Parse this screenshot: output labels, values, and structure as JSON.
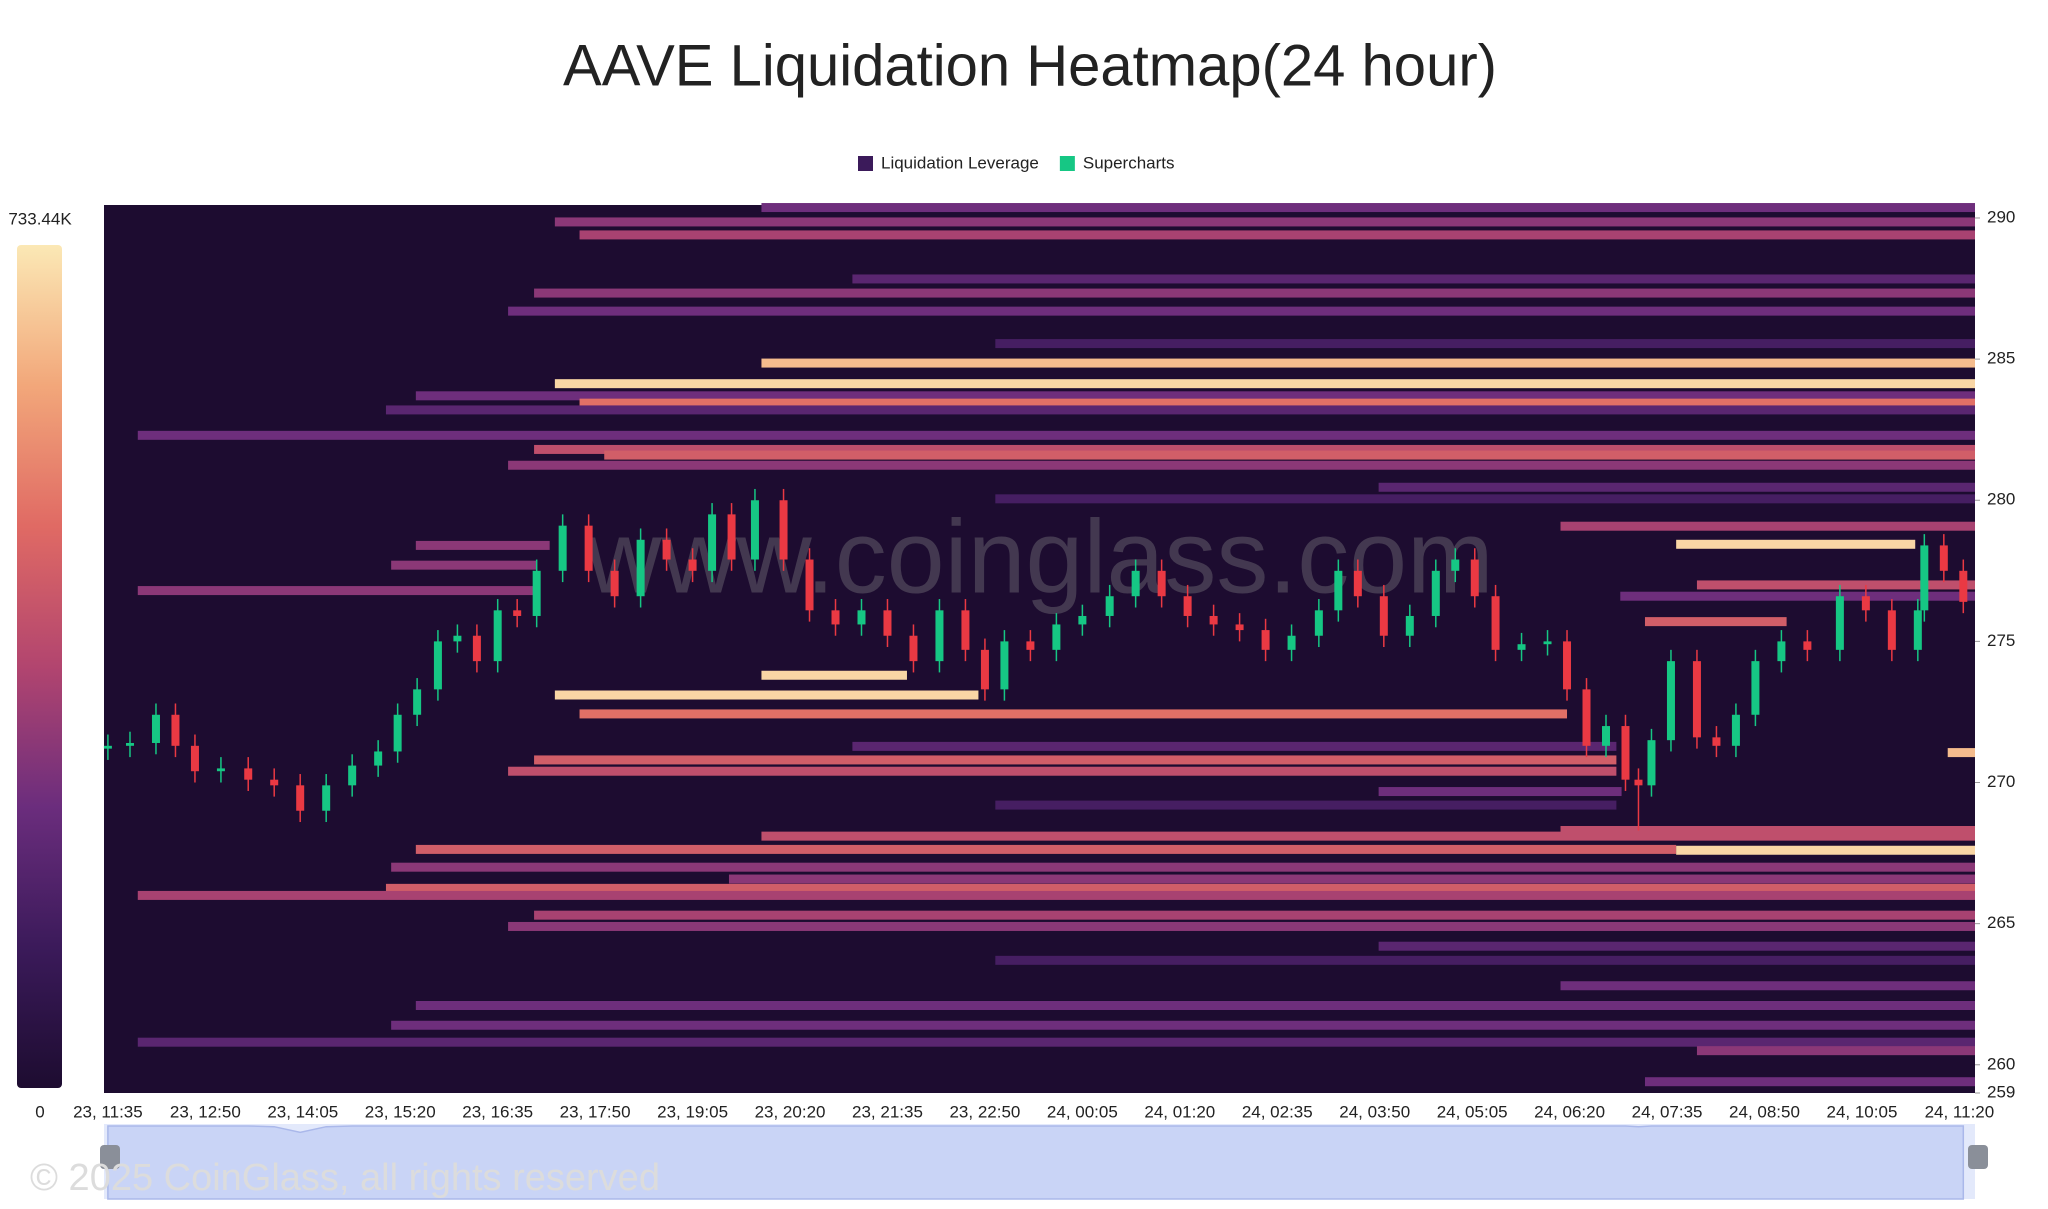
{
  "chart_data": {
    "type": "heatmap",
    "title": "AAVE Liquidation Heatmap(24 hour)",
    "watermark": "www.coinglass.com",
    "copyright": "© 2025 CoinGlass, all rights reserved",
    "series": [
      {
        "name": "Liquidation Leverage",
        "color": "#3b1a5a"
      },
      {
        "name": "Supercharts",
        "color": "#16c784"
      }
    ],
    "background": "#1d0c30",
    "colorscale": [
      "#1d0c30",
      "#3b1a5a",
      "#6b2d7d",
      "#b2456f",
      "#e06a64",
      "#f2a77a",
      "#fbe8b5"
    ],
    "colorbar": {
      "zlim": [
        0,
        733440
      ],
      "ticks": [
        {
          "value": 733440,
          "label": "733.44K"
        },
        0
      ]
    },
    "up_color": "#16c784",
    "down_color": "#ea3943",
    "xlim": [
      -3,
      1437
    ],
    "xticks": [
      {
        "value": 0,
        "label": "23, 11:35"
      },
      {
        "value": 75,
        "label": "23, 12:50"
      },
      {
        "value": 150,
        "label": "23, 14:05"
      },
      {
        "value": 225,
        "label": "23, 15:20"
      },
      {
        "value": 300,
        "label": "23, 16:35"
      },
      {
        "value": 375,
        "label": "23, 17:50"
      },
      {
        "value": 450,
        "label": "23, 19:05"
      },
      {
        "value": 525,
        "label": "23, 20:20"
      },
      {
        "value": 600,
        "label": "23, 21:35"
      },
      {
        "value": 675,
        "label": "23, 22:50"
      },
      {
        "value": 750,
        "label": "24, 00:05"
      },
      {
        "value": 825,
        "label": "24, 01:20"
      },
      {
        "value": 900,
        "label": "24, 02:35"
      },
      {
        "value": 975,
        "label": "24, 03:50"
      },
      {
        "value": 1050,
        "label": "24, 05:05"
      },
      {
        "value": 1125,
        "label": "24, 06:20"
      },
      {
        "value": 1200,
        "label": "24, 07:35"
      },
      {
        "value": 1275,
        "label": "24, 08:50"
      },
      {
        "value": 1350,
        "label": "24, 10:05"
      },
      {
        "value": 1425,
        "label": "24, 11:20"
      }
    ],
    "ylim": [
      259,
      290.46
    ],
    "yticks": [
      259,
      260,
      265,
      270,
      275,
      280,
      285,
      290
    ],
    "bands": [
      {
        "price": 290.37,
        "start": 503,
        "end": 1437,
        "value": 250000
      },
      {
        "price": 289.86,
        "start": 344,
        "end": 1437,
        "value": 300000
      },
      {
        "price": 289.4,
        "start": 363,
        "end": 1437,
        "value": 350000
      },
      {
        "price": 287.84,
        "start": 573,
        "end": 1437,
        "value": 200000
      },
      {
        "price": 287.34,
        "start": 328,
        "end": 1437,
        "value": 300000
      },
      {
        "price": 286.7,
        "start": 308,
        "end": 1437,
        "value": 250000
      },
      {
        "price": 285.55,
        "start": 683,
        "end": 1437,
        "value": 150000
      },
      {
        "price": 284.86,
        "start": 503,
        "end": 1437,
        "value": 650000
      },
      {
        "price": 284.13,
        "start": 344,
        "end": 1437,
        "value": 700000
      },
      {
        "price": 283.7,
        "start": 237,
        "end": 1437,
        "value": 250000
      },
      {
        "price": 283.44,
        "start": 363,
        "end": 1437,
        "value": 500000
      },
      {
        "price": 283.2,
        "start": 214,
        "end": 1437,
        "value": 200000
      },
      {
        "price": 282.3,
        "start": 23,
        "end": 1437,
        "value": 250000
      },
      {
        "price": 281.8,
        "start": 328,
        "end": 1437,
        "value": 400000
      },
      {
        "price": 281.6,
        "start": 382,
        "end": 1437,
        "value": 450000
      },
      {
        "price": 281.24,
        "start": 308,
        "end": 1437,
        "value": 300000
      },
      {
        "price": 280.46,
        "start": 978,
        "end": 1437,
        "value": 200000
      },
      {
        "price": 280.05,
        "start": 683,
        "end": 1437,
        "value": 150000
      },
      {
        "price": 279.08,
        "start": 1118,
        "end": 1437,
        "value": 350000
      },
      {
        "price": 278.44,
        "start": 1207,
        "end": 1391,
        "value": 700000
      },
      {
        "price": 278.4,
        "start": 237,
        "end": 340,
        "value": 300000
      },
      {
        "price": 277.7,
        "start": 218,
        "end": 330,
        "value": 300000
      },
      {
        "price": 277.0,
        "start": 1223,
        "end": 1437,
        "value": 400000
      },
      {
        "price": 276.8,
        "start": 23,
        "end": 330,
        "value": 300000
      },
      {
        "price": 276.6,
        "start": 1164,
        "end": 1437,
        "value": 250000
      },
      {
        "price": 275.7,
        "start": 1183,
        "end": 1292,
        "value": 450000
      },
      {
        "price": 273.8,
        "start": 503,
        "end": 615,
        "value": 700000
      },
      {
        "price": 273.1,
        "start": 344,
        "end": 670,
        "value": 700000
      },
      {
        "price": 272.43,
        "start": 363,
        "end": 1123,
        "value": 500000
      },
      {
        "price": 271.28,
        "start": 573,
        "end": 1161,
        "value": 200000
      },
      {
        "price": 271.06,
        "start": 1416,
        "end": 1437,
        "value": 650000
      },
      {
        "price": 270.8,
        "start": 328,
        "end": 1161,
        "value": 450000
      },
      {
        "price": 270.4,
        "start": 308,
        "end": 1161,
        "value": 400000
      },
      {
        "price": 269.68,
        "start": 978,
        "end": 1165,
        "value": 250000
      },
      {
        "price": 269.2,
        "start": 683,
        "end": 1161,
        "value": 150000
      },
      {
        "price": 268.3,
        "start": 1118,
        "end": 1437,
        "value": 400000
      },
      {
        "price": 268.1,
        "start": 503,
        "end": 1437,
        "value": 400000
      },
      {
        "price": 267.63,
        "start": 237,
        "end": 1207,
        "value": 450000
      },
      {
        "price": 267.6,
        "start": 1207,
        "end": 1437,
        "value": 700000
      },
      {
        "price": 267.0,
        "start": 218,
        "end": 1437,
        "value": 300000
      },
      {
        "price": 266.58,
        "start": 478,
        "end": 1437,
        "value": 300000
      },
      {
        "price": 266.25,
        "start": 214,
        "end": 1437,
        "value": 450000
      },
      {
        "price": 266.0,
        "start": 23,
        "end": 1437,
        "value": 350000
      },
      {
        "price": 265.3,
        "start": 328,
        "end": 1437,
        "value": 350000
      },
      {
        "price": 264.9,
        "start": 308,
        "end": 1437,
        "value": 300000
      },
      {
        "price": 264.2,
        "start": 978,
        "end": 1437,
        "value": 200000
      },
      {
        "price": 263.7,
        "start": 683,
        "end": 1437,
        "value": 150000
      },
      {
        "price": 262.8,
        "start": 1118,
        "end": 1437,
        "value": 250000
      },
      {
        "price": 262.1,
        "start": 237,
        "end": 1437,
        "value": 250000
      },
      {
        "price": 261.4,
        "start": 218,
        "end": 1437,
        "value": 250000
      },
      {
        "price": 260.8,
        "start": 23,
        "end": 1437,
        "value": 200000
      },
      {
        "price": 260.5,
        "start": 1223,
        "end": 1437,
        "value": 300000
      },
      {
        "price": 259.4,
        "start": 1183,
        "end": 1437,
        "value": 250000
      }
    ],
    "candles": {
      "x": [
        0,
        17,
        37,
        52,
        67,
        87,
        108,
        128,
        148,
        168,
        188,
        208,
        223,
        238,
        254,
        269,
        284,
        300,
        315,
        330,
        350,
        370,
        390,
        410,
        430,
        450,
        465,
        480,
        498,
        520,
        540,
        560,
        580,
        600,
        620,
        640,
        660,
        675,
        690,
        710,
        730,
        750,
        771,
        791,
        811,
        831,
        851,
        871,
        891,
        911,
        932,
        947,
        962,
        982,
        1002,
        1022,
        1037,
        1052,
        1068,
        1088,
        1108,
        1123,
        1138,
        1153,
        1168,
        1178,
        1188,
        1203,
        1223,
        1238,
        1253,
        1268,
        1288,
        1308,
        1333,
        1353,
        1373,
        1393,
        1398,
        1413,
        1428
      ],
      "open": [
        271.2,
        271.3,
        271.4,
        272.4,
        271.3,
        270.4,
        270.5,
        270.1,
        269.9,
        269.0,
        269.9,
        270.6,
        271.1,
        272.4,
        273.3,
        275.0,
        275.2,
        274.3,
        276.1,
        275.9,
        277.5,
        279.1,
        277.5,
        276.6,
        278.6,
        277.9,
        277.5,
        279.5,
        277.9,
        280.0,
        277.9,
        276.1,
        275.6,
        276.1,
        275.2,
        274.3,
        276.1,
        274.7,
        273.3,
        275.0,
        274.7,
        275.6,
        275.9,
        276.6,
        277.5,
        276.6,
        275.9,
        275.6,
        275.4,
        274.7,
        275.2,
        276.1,
        277.5,
        276.6,
        275.2,
        275.9,
        277.5,
        277.9,
        276.6,
        274.7,
        274.9,
        275.0,
        273.3,
        271.3,
        272.0,
        270.1,
        269.9,
        271.5,
        274.3,
        271.6,
        271.3,
        272.4,
        274.3,
        275.0,
        274.7,
        276.6,
        276.1,
        274.7,
        276.1,
        278.4,
        277.5
      ],
      "high": [
        271.7,
        271.8,
        272.8,
        272.8,
        271.7,
        270.9,
        270.9,
        270.5,
        270.3,
        270.3,
        271.0,
        271.5,
        272.8,
        273.7,
        275.4,
        275.6,
        275.6,
        276.5,
        276.5,
        277.9,
        279.5,
        279.5,
        277.9,
        279.0,
        279.0,
        278.3,
        279.9,
        279.9,
        280.4,
        280.4,
        278.3,
        276.5,
        276.5,
        276.5,
        275.6,
        276.5,
        276.5,
        275.1,
        275.4,
        275.4,
        276.0,
        276.3,
        277.0,
        277.9,
        277.9,
        277.0,
        276.3,
        276.0,
        275.8,
        275.6,
        276.5,
        277.9,
        277.9,
        277.0,
        276.3,
        277.9,
        278.3,
        278.3,
        277.0,
        275.3,
        275.4,
        275.4,
        273.7,
        272.4,
        272.4,
        270.5,
        271.9,
        274.7,
        274.7,
        272.0,
        272.8,
        274.7,
        275.4,
        275.4,
        277.0,
        277.0,
        276.5,
        276.5,
        278.8,
        278.8,
        277.9
      ],
      "low": [
        270.8,
        270.9,
        271.0,
        270.9,
        270.0,
        270.0,
        269.7,
        269.5,
        268.6,
        268.6,
        269.5,
        270.2,
        270.7,
        272.0,
        272.9,
        274.6,
        273.9,
        273.9,
        275.5,
        275.5,
        277.1,
        277.1,
        276.2,
        276.2,
        277.5,
        277.1,
        277.1,
        277.5,
        277.5,
        277.5,
        275.7,
        275.2,
        275.2,
        274.8,
        273.9,
        273.9,
        274.3,
        272.9,
        272.9,
        274.3,
        274.3,
        275.2,
        275.5,
        276.2,
        276.2,
        275.5,
        275.2,
        275.0,
        274.3,
        274.3,
        274.8,
        275.7,
        276.2,
        274.8,
        274.8,
        275.5,
        277.1,
        276.2,
        274.3,
        274.3,
        274.5,
        272.9,
        270.9,
        270.9,
        269.7,
        268.3,
        269.5,
        271.1,
        271.2,
        270.9,
        270.9,
        272.0,
        273.9,
        274.3,
        274.3,
        275.7,
        274.3,
        274.3,
        275.7,
        277.1,
        276.0
      ],
      "close": [
        271.3,
        271.4,
        272.4,
        271.3,
        270.4,
        270.5,
        270.1,
        269.9,
        269.0,
        269.9,
        270.6,
        271.1,
        272.4,
        273.3,
        275.0,
        275.2,
        274.3,
        276.1,
        275.9,
        277.5,
        279.1,
        277.5,
        276.6,
        278.6,
        277.9,
        277.5,
        279.5,
        277.9,
        280.0,
        277.9,
        276.1,
        275.6,
        276.1,
        275.2,
        274.3,
        276.1,
        274.7,
        273.3,
        275.0,
        274.7,
        275.6,
        275.9,
        276.6,
        277.5,
        276.6,
        275.9,
        275.6,
        275.4,
        274.7,
        275.2,
        276.1,
        277.5,
        276.6,
        275.2,
        275.9,
        277.5,
        277.9,
        276.6,
        274.7,
        274.9,
        275.0,
        273.3,
        271.3,
        272.0,
        270.1,
        269.9,
        271.5,
        274.3,
        271.6,
        271.3,
        272.4,
        274.3,
        275.0,
        274.7,
        276.6,
        276.1,
        274.7,
        276.1,
        278.4,
        277.5,
        276.4
      ]
    }
  }
}
